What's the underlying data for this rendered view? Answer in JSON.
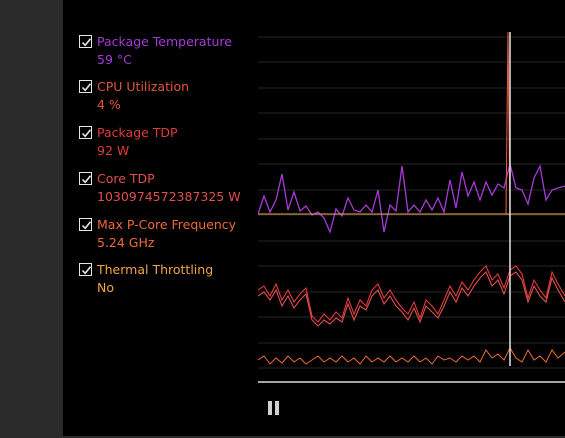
{
  "metrics": [
    {
      "label": "Package Temperature",
      "value": "59 °C",
      "checked": true,
      "color": "#a43bd6"
    },
    {
      "label": "CPU Utilization",
      "value": "4 %",
      "checked": true,
      "color": "#e0553e"
    },
    {
      "label": "Package TDP",
      "value": "92 W",
      "checked": true,
      "color": "#e23a3a"
    },
    {
      "label": "Core TDP",
      "value": "1030974572387325 W",
      "checked": true,
      "color": "#e04e4e"
    },
    {
      "label": "Max P-Core Frequency",
      "value": "5.24 GHz",
      "checked": true,
      "color": "#ef6a3a"
    },
    {
      "label": "Thermal Throttling",
      "value": "No",
      "checked": true,
      "color": "#f0a34a"
    }
  ],
  "controls": {
    "pause_icon": "pause-icon"
  },
  "colors": {
    "panel_bg": "#000000",
    "gutter_bg": "#2b2b2b",
    "grid": "#2a2a2a",
    "cursor_line": "#e6e6e6"
  }
}
